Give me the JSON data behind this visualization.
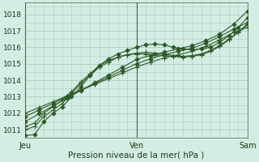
{
  "title": "",
  "xlabel": "Pression niveau de la mer( hPa )",
  "ylabel": "",
  "bg_color": "#d4ede4",
  "grid_color": "#aacfbe",
  "line_color": "#2d5a27",
  "marker_color": "#2d5a27",
  "ylim": [
    1010.5,
    1018.7
  ],
  "xlim": [
    0,
    48
  ],
  "xtick_positions": [
    0,
    24,
    48
  ],
  "xtick_labels": [
    "Jeu",
    "Ven",
    "Sam"
  ],
  "ytick_positions": [
    1011,
    1012,
    1013,
    1014,
    1015,
    1016,
    1017,
    1018
  ],
  "series": [
    {
      "x": [
        0,
        2,
        4,
        6,
        8,
        10,
        12,
        14,
        16,
        18,
        20,
        22,
        24,
        26,
        28,
        30,
        32,
        34,
        36,
        38,
        40,
        42,
        44,
        46,
        48
      ],
      "y": [
        1010.65,
        1010.7,
        1011.5,
        1012.0,
        1012.4,
        1013.0,
        1013.6,
        1014.3,
        1014.9,
        1015.3,
        1015.6,
        1015.8,
        1016.0,
        1016.15,
        1016.2,
        1016.15,
        1016.0,
        1015.9,
        1015.85,
        1015.9,
        1016.0,
        1016.3,
        1016.7,
        1017.2,
        1017.8
      ],
      "marker": "D",
      "ms": 2.5
    },
    {
      "x": [
        0,
        2,
        4,
        6,
        8,
        10,
        12,
        14,
        16,
        18,
        20,
        22,
        24,
        26,
        28,
        30,
        32,
        34,
        36,
        38,
        40,
        42,
        44,
        46,
        48
      ],
      "y": [
        1011.0,
        1011.2,
        1011.8,
        1012.2,
        1012.6,
        1013.2,
        1013.8,
        1014.3,
        1014.8,
        1015.1,
        1015.4,
        1015.55,
        1015.65,
        1015.7,
        1015.65,
        1015.6,
        1015.5,
        1015.45,
        1015.5,
        1015.6,
        1015.8,
        1016.1,
        1016.5,
        1016.95,
        1017.4
      ],
      "marker": "+",
      "ms": 4
    },
    {
      "x": [
        0,
        2,
        4,
        6,
        8,
        10,
        12,
        14,
        16,
        18,
        20,
        22,
        24,
        26,
        28,
        30,
        32,
        34,
        36,
        38,
        40,
        42,
        44,
        46,
        48
      ],
      "y": [
        1011.2,
        1011.4,
        1012.0,
        1012.4,
        1012.8,
        1013.3,
        1013.9,
        1014.4,
        1014.9,
        1015.2,
        1015.4,
        1015.55,
        1015.6,
        1015.6,
        1015.55,
        1015.5,
        1015.45,
        1015.4,
        1015.45,
        1015.55,
        1015.75,
        1016.05,
        1016.45,
        1016.9,
        1017.35
      ],
      "marker": "+",
      "ms": 4
    },
    {
      "x": [
        0,
        3,
        6,
        9,
        12,
        15,
        18,
        21,
        24,
        27,
        30,
        33,
        36,
        39,
        42,
        45,
        48
      ],
      "y": [
        1011.5,
        1011.97,
        1012.44,
        1012.91,
        1013.38,
        1013.85,
        1014.32,
        1014.79,
        1015.26,
        1015.5,
        1015.7,
        1015.9,
        1016.1,
        1016.4,
        1016.8,
        1017.4,
        1018.2
      ],
      "marker": "D",
      "ms": 2.5
    },
    {
      "x": [
        0,
        3,
        6,
        9,
        12,
        15,
        18,
        21,
        24,
        27,
        30,
        33,
        36,
        39,
        42,
        45,
        48
      ],
      "y": [
        1011.8,
        1012.2,
        1012.6,
        1013.0,
        1013.4,
        1013.8,
        1014.2,
        1014.6,
        1015.0,
        1015.3,
        1015.55,
        1015.75,
        1015.95,
        1016.25,
        1016.65,
        1017.1,
        1017.5
      ],
      "marker": "D",
      "ms": 2.5
    },
    {
      "x": [
        0,
        3,
        6,
        9,
        12,
        15,
        18,
        21,
        24,
        27,
        30,
        33,
        36,
        39,
        42,
        45,
        48
      ],
      "y": [
        1012.0,
        1012.35,
        1012.7,
        1013.05,
        1013.4,
        1013.75,
        1014.1,
        1014.45,
        1014.8,
        1015.1,
        1015.35,
        1015.55,
        1015.75,
        1016.05,
        1016.45,
        1016.9,
        1017.2
      ],
      "marker": "+",
      "ms": 4
    }
  ]
}
